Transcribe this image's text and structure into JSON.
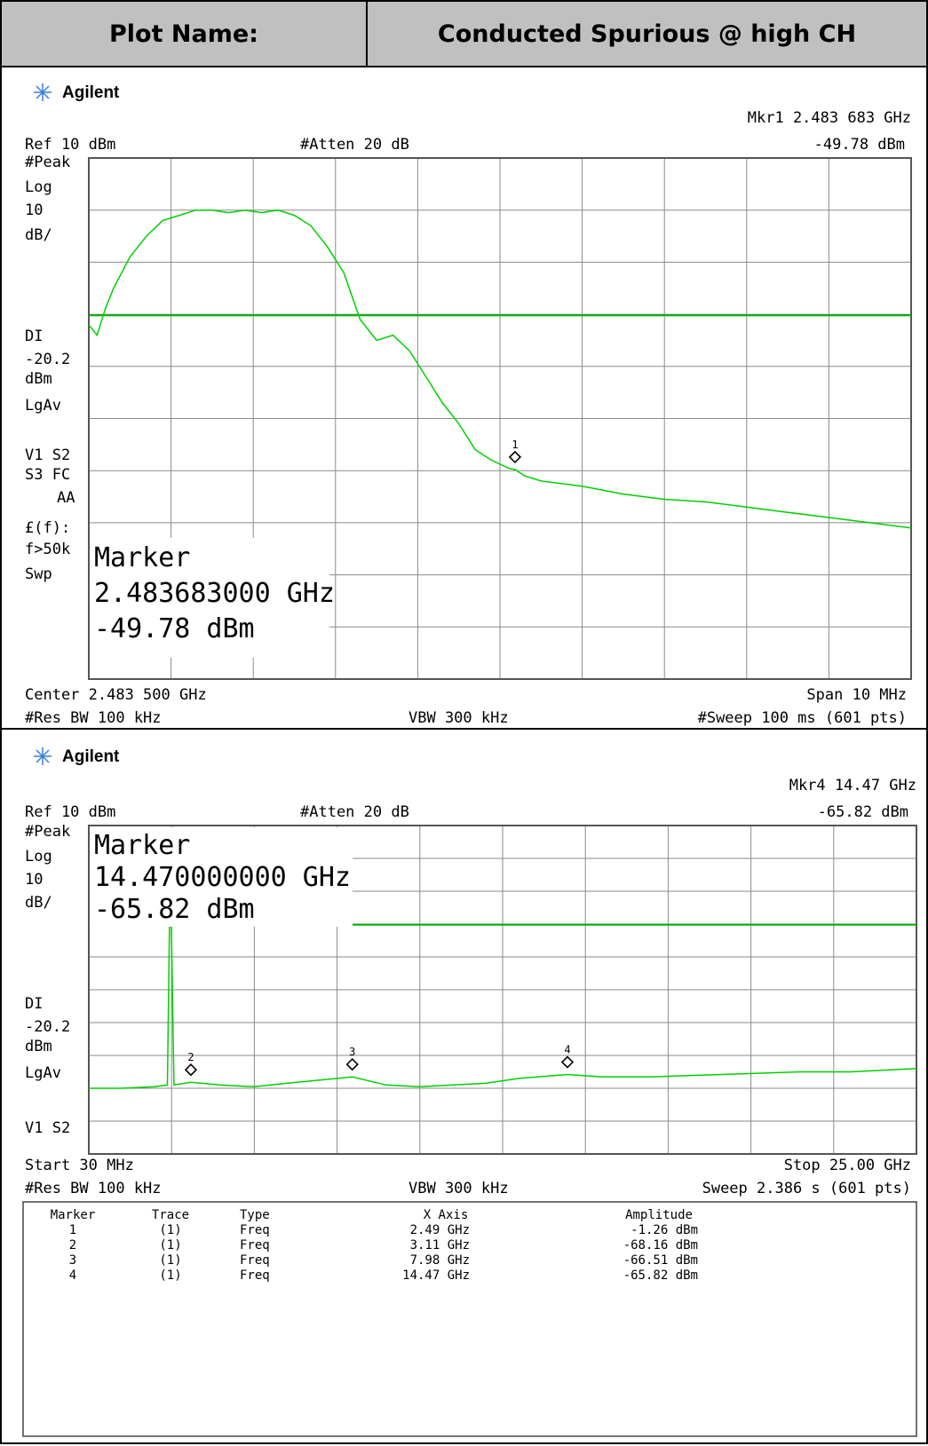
{
  "header": {
    "plot_name_label": "Plot Name:",
    "plot_name_value": "Conducted Spurious @ high CH"
  },
  "brand": "Agilent",
  "colors": {
    "trace": "#00d000",
    "grid": "#888888",
    "header_bg": "#c0c0c0"
  },
  "plot1": {
    "marker_readout": {
      "line1": "Mkr1  2.483 683 GHz",
      "line2": "-49.78 dBm"
    },
    "ref": "Ref 10 dBm",
    "atten": "#Atten 20 dB",
    "side": [
      "#Peak",
      "Log",
      "10",
      "dB/",
      "DI",
      "-20.2",
      "dBm",
      "LgAv",
      "V1  S2",
      "S3  FC",
      "AA",
      "£(f):",
      "f>50k",
      "Swp"
    ],
    "marker_box": {
      "title": "Marker",
      "freq": "2.483683000 GHz",
      "amp": "-49.78 dBm"
    },
    "bottom_left": "Center 2.483 500 GHz",
    "bottom_right": "Span 10 MHz",
    "settings": {
      "rbw": "#Res BW 100 kHz",
      "vbw": "VBW 300 kHz",
      "sweep": "#Sweep 100 ms (601 pts)"
    }
  },
  "plot2": {
    "marker_readout": {
      "line1": "Mkr4  14.47 GHz",
      "line2": "-65.82 dBm"
    },
    "ref": "Ref 10 dBm",
    "atten": "#Atten 20 dB",
    "side": [
      "#Peak",
      "Log",
      "10",
      "dB/",
      "DI",
      "-20.2",
      "dBm",
      "LgAv",
      "V1  S2"
    ],
    "marker_box": {
      "title": "Marker",
      "freq": "14.470000000 GHz",
      "amp": "-65.82 dBm"
    },
    "bottom_left": "Start 30 MHz",
    "bottom_right": "Stop 25.00 GHz",
    "settings": {
      "rbw": "#Res BW 100 kHz",
      "vbw": "VBW 300 kHz",
      "sweep": "Sweep 2.386 s (601 pts)"
    }
  },
  "marker_table": {
    "headers": [
      "Marker",
      "Trace",
      "Type",
      "X Axis",
      "Amplitude"
    ],
    "rows": [
      [
        "1",
        "(1)",
        "Freq",
        "2.49 GHz",
        "-1.26 dBm"
      ],
      [
        "2",
        "(1)",
        "Freq",
        "3.11 GHz",
        "-68.16 dBm"
      ],
      [
        "3",
        "(1)",
        "Freq",
        "7.98 GHz",
        "-66.51 dBm"
      ],
      [
        "4",
        "(1)",
        "Freq",
        "14.47 GHz",
        "-65.82 dBm"
      ]
    ]
  },
  "chart_data": [
    {
      "type": "line",
      "x_unit": "MHz",
      "y_unit": "dBm",
      "xlim": [
        2478.5,
        2488.5
      ],
      "ylim": [
        -90,
        10
      ],
      "display_line": -20.2,
      "x_ticks_labels": [
        "Center 2.483 500 GHz",
        "Span 10 MHz"
      ],
      "series": [
        {
          "x": [
            2478.5,
            2478.6,
            2478.7,
            2478.8,
            2479.0,
            2479.2,
            2479.4,
            2479.6,
            2479.8,
            2480.0,
            2480.2,
            2480.4,
            2480.6,
            2480.8,
            2481.0,
            2481.2,
            2481.4,
            2481.6,
            2481.8,
            2482.0,
            2482.2,
            2482.4,
            2482.6,
            2482.8,
            2483.0,
            2483.2,
            2483.4,
            2483.6,
            2483.683,
            2483.8,
            2484.0,
            2484.5,
            2485.0,
            2485.5,
            2486.0,
            2486.5,
            2487.0,
            2487.5,
            2488.0,
            2488.5
          ],
          "y": [
            -22,
            -24,
            -19,
            -15,
            -9,
            -5,
            -2,
            -1,
            0,
            0,
            -0.5,
            0,
            -0.5,
            0,
            -1,
            -3,
            -7,
            -12,
            -21,
            -25,
            -24,
            -27,
            -32,
            -37,
            -41,
            -46,
            -48,
            -49.5,
            -49.8,
            -51,
            -52,
            -53,
            -54.5,
            -55.5,
            -56,
            -57,
            -58,
            -59,
            -60,
            -61
          ]
        }
      ],
      "markers": [
        {
          "n": 1,
          "x": 2483.683,
          "y": -49.78
        }
      ]
    },
    {
      "type": "line",
      "x_unit": "GHz",
      "y_unit": "dBm",
      "xlim": [
        0.03,
        25.0
      ],
      "ylim": [
        -90,
        10
      ],
      "display_line": -20.2,
      "series": [
        {
          "x": [
            0.03,
            1.0,
            2.0,
            2.4,
            2.49,
            2.6,
            3.11,
            4.0,
            5.0,
            6.0,
            7.0,
            7.98,
            9.0,
            10.0,
            11.0,
            12.0,
            13.0,
            14.47,
            15.5,
            17.0,
            18.5,
            20.0,
            21.5,
            23.0,
            24.0,
            25.0
          ],
          "y": [
            -70,
            -70,
            -69.5,
            -69,
            -1.26,
            -69,
            -68.16,
            -69,
            -69.5,
            -68.5,
            -67.5,
            -66.51,
            -69,
            -69.5,
            -69,
            -68.5,
            -67,
            -65.82,
            -66.5,
            -66.5,
            -66,
            -65.5,
            -65,
            -65,
            -64.5,
            -64
          ]
        }
      ],
      "markers": [
        {
          "n": 1,
          "x": 2.49,
          "y": -1.26
        },
        {
          "n": 2,
          "x": 3.11,
          "y": -68.16
        },
        {
          "n": 3,
          "x": 7.98,
          "y": -66.51
        },
        {
          "n": 4,
          "x": 14.47,
          "y": -65.82
        }
      ]
    }
  ]
}
